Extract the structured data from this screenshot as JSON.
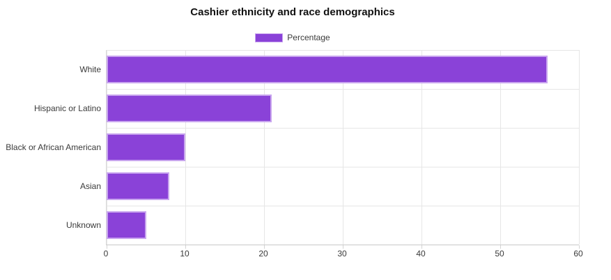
{
  "chart_data": {
    "type": "bar",
    "orientation": "horizontal",
    "title": "Cashier ethnicity and race demographics",
    "legend": [
      "Percentage"
    ],
    "legend_position": "top",
    "categories": [
      "White",
      "Hispanic or Latino",
      "Black or African American",
      "Asian",
      "Unknown"
    ],
    "values": [
      56,
      21,
      10,
      8,
      5
    ],
    "xlabel": "",
    "ylabel": "",
    "xlim": [
      0,
      60
    ],
    "x_ticks": [
      0,
      10,
      20,
      30,
      40,
      50,
      60
    ],
    "grid": true,
    "colors": {
      "bar_fill": "#8a42d8",
      "bar_border": "#c9a6ef",
      "grid": "#e6e6e6",
      "axis": "#c9c9c9",
      "text": "#3a3a3a",
      "title": "#111111"
    }
  }
}
